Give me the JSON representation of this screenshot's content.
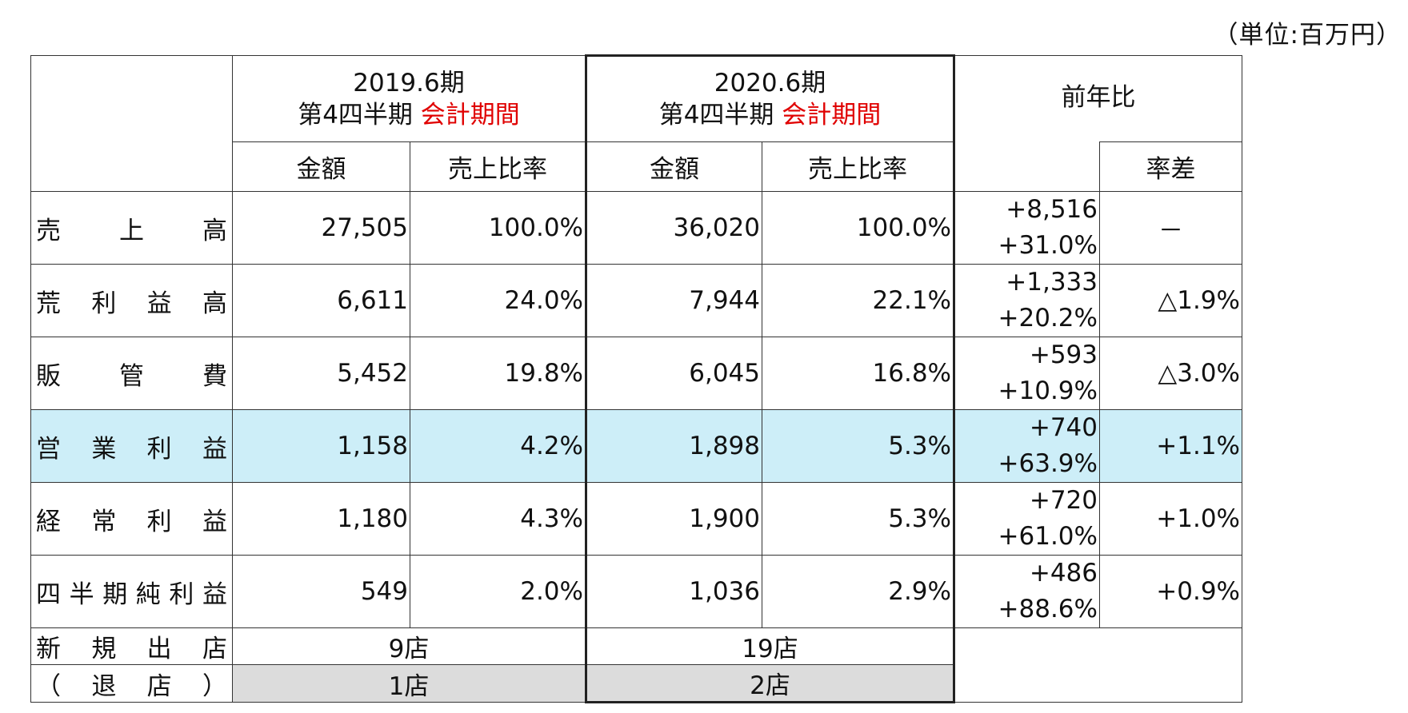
{
  "unit": "（単位:百万円）",
  "header": {
    "fy2019": {
      "line1": "2019.6期",
      "line2": "第4四半期",
      "line2_red": "会計期間"
    },
    "fy2020": {
      "line1": "2020.6期",
      "line2": "第4四半期",
      "line2_red": "会計期間"
    },
    "yoy": "前年比",
    "amount": "金額",
    "ratio": "売上比率",
    "rate_diff": "率差"
  },
  "rows": [
    {
      "label": [
        "売",
        "上",
        "高"
      ],
      "a2019": "27,505",
      "r2019": "100.0%",
      "a2020": "36,020",
      "r2020": "100.0%",
      "diff_amt": "+8,516",
      "diff_pct": "+31.0%",
      "rate_diff": "－"
    },
    {
      "label": [
        "荒",
        "利",
        "益",
        "高"
      ],
      "a2019": "6,611",
      "r2019": "24.0%",
      "a2020": "7,944",
      "r2020": "22.1%",
      "diff_amt": "+1,333",
      "diff_pct": "+20.2%",
      "rate_diff": "△1.9%"
    },
    {
      "label": [
        "販",
        "管",
        "費"
      ],
      "a2019": "5,452",
      "r2019": "19.8%",
      "a2020": "6,045",
      "r2020": "16.8%",
      "diff_amt": "+593",
      "diff_pct": "+10.9%",
      "rate_diff": "△3.0%"
    },
    {
      "label": [
        "営",
        "業",
        "利",
        "益"
      ],
      "a2019": "1,158",
      "r2019": "4.2%",
      "a2020": "1,898",
      "r2020": "5.3%",
      "diff_amt": "+740",
      "diff_pct": "+63.9%",
      "rate_diff": "+1.1%"
    },
    {
      "label": [
        "経",
        "常",
        "利",
        "益"
      ],
      "a2019": "1,180",
      "r2019": "4.3%",
      "a2020": "1,900",
      "r2020": "5.3%",
      "diff_amt": "+720",
      "diff_pct": "+61.0%",
      "rate_diff": "+1.0%"
    },
    {
      "label": [
        "四",
        "半",
        "期",
        "純",
        "利",
        "益"
      ],
      "a2019": "549",
      "r2019": "2.0%",
      "a2020": "1,036",
      "r2020": "2.9%",
      "diff_amt": "+486",
      "diff_pct": "+88.6%",
      "rate_diff": "+0.9%"
    }
  ],
  "stores": [
    {
      "label": [
        "新",
        "規",
        "出",
        "店"
      ],
      "v2019": "9店",
      "v2020": "19店"
    },
    {
      "label": [
        "（",
        "退",
        "店",
        "）"
      ],
      "v2019": "1店",
      "v2020": "2店"
    }
  ]
}
